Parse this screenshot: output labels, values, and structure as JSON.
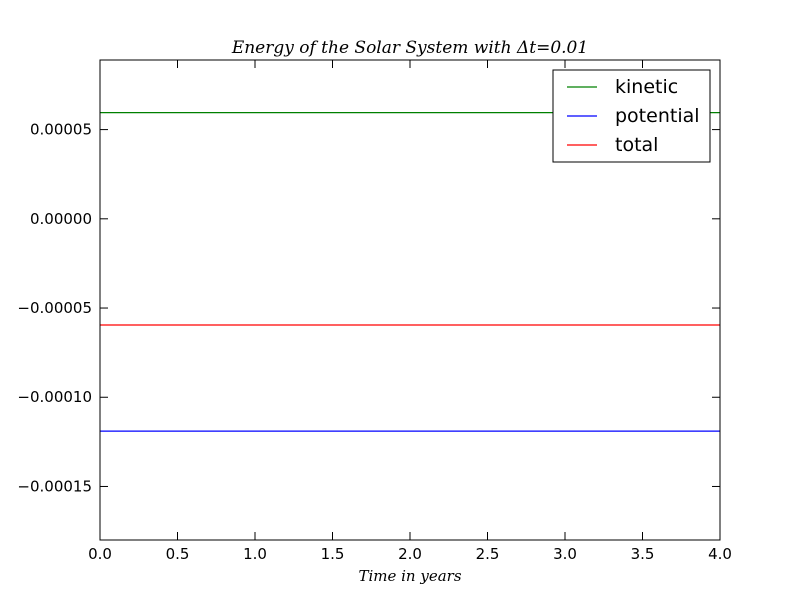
{
  "chart_data": {
    "type": "line",
    "title": "Energy of the Solar System with Δt=0.01",
    "xlabel": "Time in years",
    "ylabel": "",
    "xlim": [
      0.0,
      4.0
    ],
    "ylim": [
      -0.00018,
      8.9e-05
    ],
    "xticks": [
      0.0,
      0.5,
      1.0,
      1.5,
      2.0,
      2.5,
      3.0,
      3.5,
      4.0
    ],
    "xtick_labels": [
      "0.0",
      "0.5",
      "1.0",
      "1.5",
      "2.0",
      "2.5",
      "3.0",
      "3.5",
      "4.0"
    ],
    "yticks": [
      5e-05,
      0.0,
      -5e-05,
      -0.0001,
      -0.00015
    ],
    "ytick_labels": [
      "0.00005",
      "0.00000",
      "−0.00005",
      "−0.00010",
      "−0.00015"
    ],
    "grid": false,
    "legend_position": "top-right",
    "x": [
      0.0,
      4.0
    ],
    "series": [
      {
        "name": "kinetic",
        "color": "#008000",
        "values": [
          5.95e-05,
          5.95e-05
        ]
      },
      {
        "name": "potential",
        "color": "#0000ff",
        "values": [
          -0.000119,
          -0.000119
        ]
      },
      {
        "name": "total",
        "color": "#ff0000",
        "values": [
          -5.95e-05,
          -5.95e-05
        ]
      }
    ]
  }
}
